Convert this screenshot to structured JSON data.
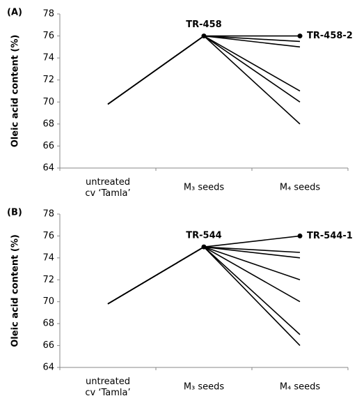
{
  "chart_data": [
    {
      "type": "line",
      "panel_label": "(A)",
      "y_label": "Oleic acid content (%)",
      "categories": [
        [
          "untreated",
          "cv ‘Tamla’"
        ],
        "M₃ seeds",
        "M₄ seeds"
      ],
      "ylim": [
        64,
        78
      ],
      "yticks": [
        64,
        66,
        68,
        70,
        72,
        74,
        76,
        78
      ],
      "color": "#000000",
      "series": [
        {
          "values": [
            69.8,
            76,
            76
          ],
          "marker": true,
          "point_labels": [
            null,
            "TR-458",
            "TR-458-2"
          ]
        },
        {
          "values": [
            69.8,
            76,
            75.5
          ]
        },
        {
          "values": [
            69.8,
            76,
            75
          ]
        },
        {
          "values": [
            69.8,
            76,
            71
          ]
        },
        {
          "values": [
            69.8,
            76,
            70
          ]
        },
        {
          "values": [
            69.8,
            76,
            68
          ]
        }
      ]
    },
    {
      "type": "line",
      "panel_label": "(B)",
      "y_label": "Oleic acid content (%)",
      "categories": [
        [
          "untreated",
          "cv ‘Tamla’"
        ],
        "M₃ seeds",
        "M₄ seeds"
      ],
      "ylim": [
        64,
        78
      ],
      "yticks": [
        64,
        66,
        68,
        70,
        72,
        74,
        76,
        78
      ],
      "color": "#000000",
      "series": [
        {
          "values": [
            69.8,
            75,
            76
          ],
          "marker": true,
          "point_labels": [
            null,
            "TR-544",
            "TR-544-1"
          ]
        },
        {
          "values": [
            69.8,
            75,
            74.5
          ]
        },
        {
          "values": [
            69.8,
            75,
            74
          ]
        },
        {
          "values": [
            69.8,
            75,
            72
          ]
        },
        {
          "values": [
            69.8,
            75,
            70
          ]
        },
        {
          "values": [
            69.8,
            75,
            67
          ]
        },
        {
          "values": [
            69.8,
            75,
            66
          ]
        }
      ]
    }
  ]
}
